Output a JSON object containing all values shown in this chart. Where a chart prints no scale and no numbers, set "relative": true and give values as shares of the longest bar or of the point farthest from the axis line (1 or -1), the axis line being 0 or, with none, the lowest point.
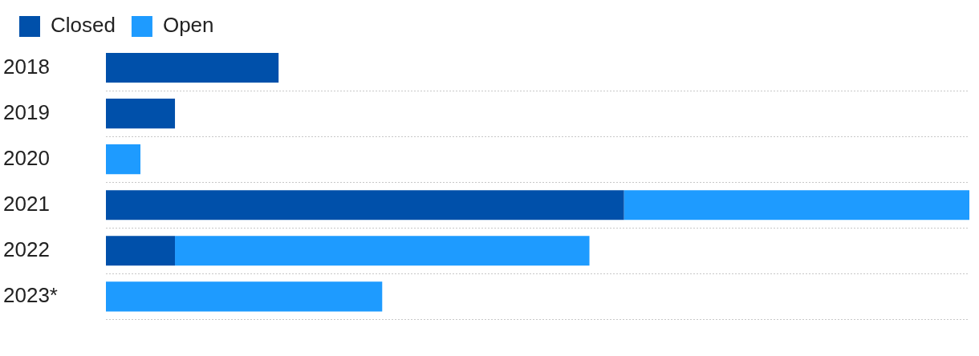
{
  "chart_data": {
    "type": "bar",
    "orientation": "horizontal",
    "stacked": true,
    "relative": true,
    "legend": "top left",
    "grid": "y",
    "categories": [
      "2018",
      "2019",
      "2020",
      "2021",
      "2022",
      "2023*"
    ],
    "series": [
      {
        "name": "Closed",
        "color": "#0050aa",
        "values": [
          0.2,
          0.08,
          null,
          0.6,
          0.08,
          null
        ]
      },
      {
        "name": "Open",
        "color": "#1e9bff",
        "values": [
          null,
          null,
          0.04,
          0.4,
          0.48,
          0.32
        ]
      }
    ]
  }
}
